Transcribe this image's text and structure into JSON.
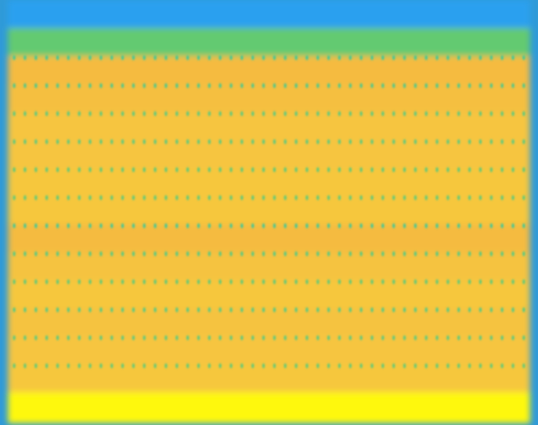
{
  "chart_data": {
    "type": "heatmap",
    "title": "",
    "xlabel": "",
    "ylabel": "",
    "colormap": [
      "#3b4cc0",
      "#2a9df4",
      "#1fc8b4",
      "#7acb5c",
      "#f4b443",
      "#f7d63a",
      "#ffff00"
    ],
    "rows": [
      {
        "value": 0.18,
        "dots": false
      },
      {
        "value": 0.46,
        "dots": false
      },
      {
        "value": 0.7,
        "dots": true
      },
      {
        "value": 0.72,
        "dots": true
      },
      {
        "value": 0.75,
        "dots": true
      },
      {
        "value": 0.75,
        "dots": true
      },
      {
        "value": 0.76,
        "dots": true
      },
      {
        "value": 0.76,
        "dots": true
      },
      {
        "value": 0.7,
        "dots": true
      },
      {
        "value": 0.74,
        "dots": true
      },
      {
        "value": 0.76,
        "dots": true
      },
      {
        "value": 0.74,
        "dots": true
      },
      {
        "value": 0.75,
        "dots": true
      },
      {
        "value": 0.76,
        "dots": true
      },
      {
        "value": 0.97,
        "dots": false
      }
    ],
    "dot_columns": 48
  }
}
